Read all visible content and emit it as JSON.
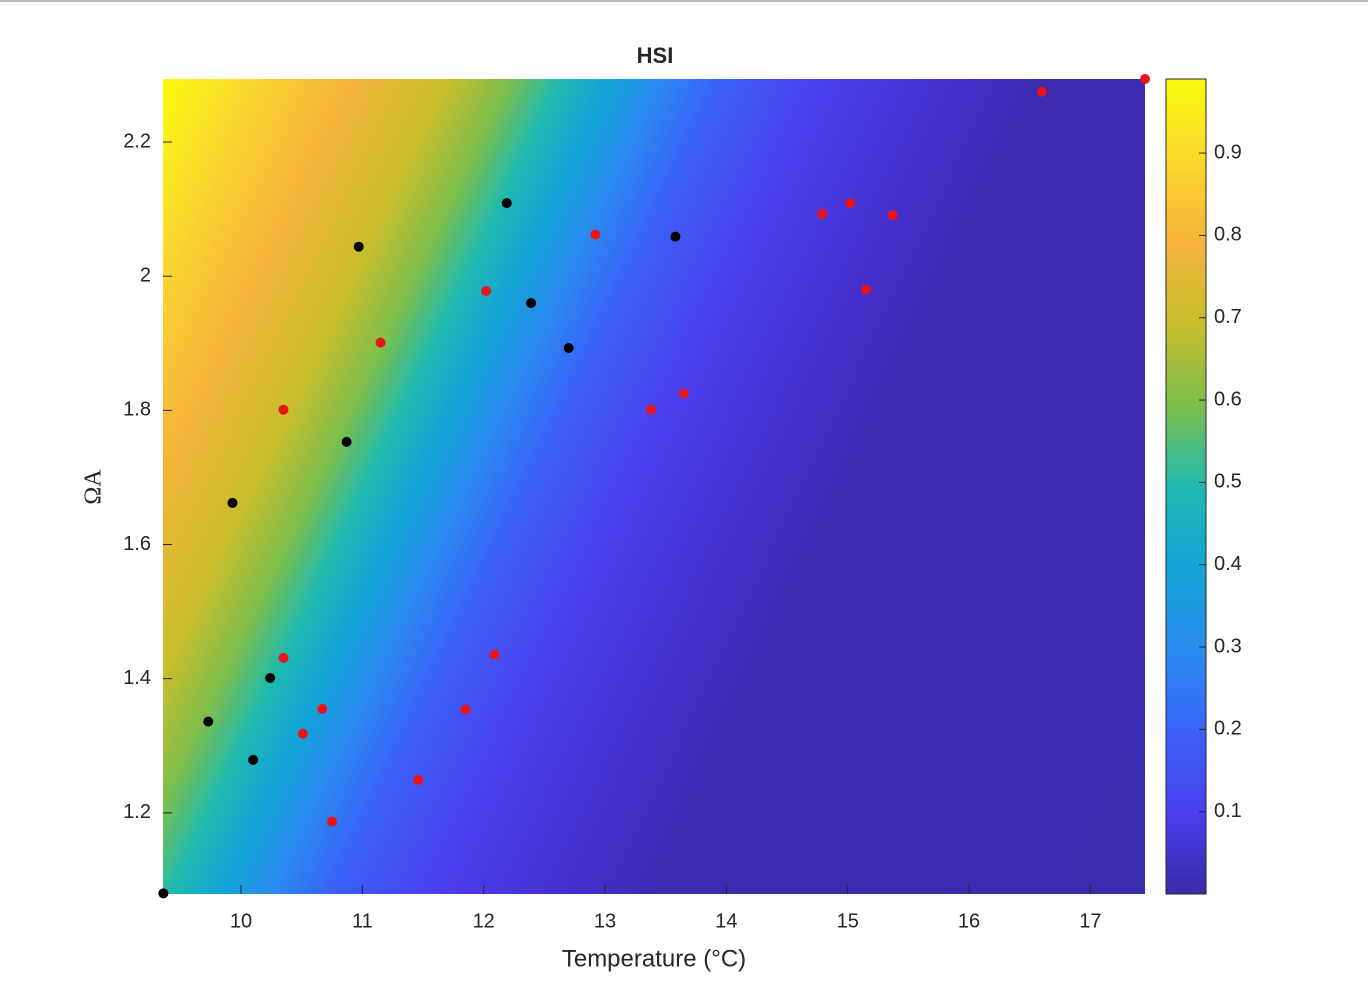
{
  "chart_data": {
    "type": "scatter",
    "title": "HSI",
    "xlabel": "Temperature (°C)",
    "ylabel": "ΩA",
    "xlim": [
      9.357,
      17.45
    ],
    "ylim": [
      1.079,
      2.294
    ],
    "xticks": [
      10,
      11,
      12,
      13,
      14,
      15,
      16,
      17
    ],
    "yticks": [
      1.2,
      1.4,
      1.6,
      1.8,
      2,
      2.2
    ],
    "colorbar": {
      "lim": [
        0,
        0.99
      ],
      "ticks": [
        0.1,
        0.2,
        0.3,
        0.4,
        0.5,
        0.6,
        0.7,
        0.8,
        0.9
      ]
    },
    "series": [
      {
        "color": "#000000",
        "x": [
          9.36,
          9.73,
          9.93,
          10.1,
          10.24,
          10.87,
          10.97,
          12.19,
          12.39,
          12.7,
          13.58
        ],
        "values": [
          1.08,
          1.336,
          1.662,
          1.279,
          1.401,
          1.753,
          2.044,
          2.109,
          1.96,
          1.893,
          2.059
        ]
      },
      {
        "color": "#e8141c",
        "x": [
          10.35,
          10.35,
          10.51,
          10.67,
          10.75,
          11.15,
          11.46,
          11.85,
          12.02,
          12.09,
          12.92,
          13.38,
          13.65,
          14.79,
          15.02,
          15.15,
          15.37,
          16.6,
          17.45
        ],
        "values": [
          1.801,
          1.431,
          1.318,
          1.355,
          1.187,
          1.901,
          1.249,
          1.354,
          1.978,
          1.436,
          2.062,
          1.801,
          1.825,
          2.093,
          2.109,
          1.98,
          2.091,
          2.275,
          2.294
        ]
      }
    ]
  }
}
